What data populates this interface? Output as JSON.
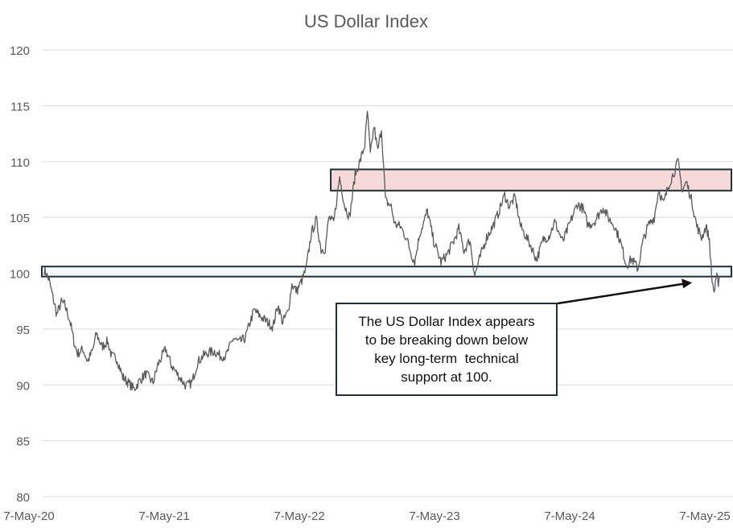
{
  "chart_data": {
    "type": "line",
    "title": "US Dollar Index",
    "xlabel": "",
    "ylabel": "",
    "ylim": [
      80,
      120
    ],
    "y_ticks": [
      80,
      85,
      90,
      95,
      100,
      105,
      110,
      115,
      120
    ],
    "x_tick_labels": [
      "7-May-20",
      "7-May-21",
      "7-May-22",
      "7-May-23",
      "7-May-24",
      "7-May-25"
    ],
    "xlim": [
      "2020-05-07",
      "2025-05-07"
    ],
    "grid": true,
    "series": [
      {
        "color": "#595959",
        "points": [
          [
            "2020-05-07",
            100.3
          ],
          [
            "2020-05-20",
            99.4
          ],
          [
            "2020-06-01",
            97.6
          ],
          [
            "2020-06-10",
            96.3
          ],
          [
            "2020-06-22",
            97.4
          ],
          [
            "2020-07-01",
            97.2
          ],
          [
            "2020-07-15",
            95.8
          ],
          [
            "2020-07-28",
            93.6
          ],
          [
            "2020-08-05",
            92.8
          ],
          [
            "2020-08-20",
            93.2
          ],
          [
            "2020-09-01",
            92.1
          ],
          [
            "2020-09-15",
            93.1
          ],
          [
            "2020-09-25",
            94.6
          ],
          [
            "2020-10-10",
            93.4
          ],
          [
            "2020-10-25",
            93.9
          ],
          [
            "2020-11-05",
            92.6
          ],
          [
            "2020-11-20",
            92.3
          ],
          [
            "2020-12-05",
            90.7
          ],
          [
            "2020-12-20",
            90.2
          ],
          [
            "2021-01-05",
            89.6
          ],
          [
            "2021-01-20",
            90.4
          ],
          [
            "2021-02-05",
            91.0
          ],
          [
            "2021-02-25",
            90.2
          ],
          [
            "2021-03-10",
            91.8
          ],
          [
            "2021-03-31",
            93.2
          ],
          [
            "2021-04-15",
            91.8
          ],
          [
            "2021-05-01",
            91.0
          ],
          [
            "2021-05-25",
            89.9
          ],
          [
            "2021-06-10",
            90.2
          ],
          [
            "2021-06-25",
            92.0
          ],
          [
            "2021-07-10",
            92.6
          ],
          [
            "2021-07-25",
            92.9
          ],
          [
            "2021-08-10",
            93.0
          ],
          [
            "2021-08-25",
            92.6
          ],
          [
            "2021-09-10",
            92.6
          ],
          [
            "2021-09-30",
            94.2
          ],
          [
            "2021-10-15",
            93.8
          ],
          [
            "2021-11-01",
            94.2
          ],
          [
            "2021-11-15",
            95.7
          ],
          [
            "2021-11-25",
            96.7
          ],
          [
            "2021-12-10",
            96.2
          ],
          [
            "2022-01-01",
            95.6
          ],
          [
            "2022-01-15",
            95.2
          ],
          [
            "2022-01-28",
            97.2
          ],
          [
            "2022-02-10",
            95.6
          ],
          [
            "2022-02-25",
            96.6
          ],
          [
            "2022-03-07",
            99.0
          ],
          [
            "2022-03-20",
            98.4
          ],
          [
            "2022-04-05",
            99.5
          ],
          [
            "2022-04-15",
            100.5
          ],
          [
            "2022-04-28",
            103.5
          ],
          [
            "2022-05-12",
            104.8
          ],
          [
            "2022-05-25",
            102.1
          ],
          [
            "2022-06-05",
            102.2
          ],
          [
            "2022-06-15",
            105.0
          ],
          [
            "2022-06-28",
            104.5
          ],
          [
            "2022-07-14",
            108.6
          ],
          [
            "2022-07-28",
            106.0
          ],
          [
            "2022-08-10",
            105.0
          ],
          [
            "2022-08-25",
            108.9
          ],
          [
            "2022-09-07",
            110.0
          ],
          [
            "2022-09-20",
            111.5
          ],
          [
            "2022-09-27",
            114.5
          ],
          [
            "2022-10-05",
            110.6
          ],
          [
            "2022-10-15",
            113.2
          ],
          [
            "2022-10-25",
            110.9
          ],
          [
            "2022-11-04",
            113.0
          ],
          [
            "2022-11-15",
            106.5
          ],
          [
            "2022-11-30",
            106.0
          ],
          [
            "2022-12-10",
            104.4
          ],
          [
            "2022-12-25",
            104.2
          ],
          [
            "2023-01-10",
            103.2
          ],
          [
            "2023-01-26",
            101.5
          ],
          [
            "2023-02-02",
            101.0
          ],
          [
            "2023-02-15",
            103.5
          ],
          [
            "2023-03-01",
            104.8
          ],
          [
            "2023-03-08",
            105.6
          ],
          [
            "2023-03-25",
            102.9
          ],
          [
            "2023-04-14",
            101.0
          ],
          [
            "2023-05-01",
            101.7
          ],
          [
            "2023-05-20",
            103.0
          ],
          [
            "2023-06-01",
            104.0
          ],
          [
            "2023-06-15",
            102.0
          ],
          [
            "2023-07-01",
            103.0
          ],
          [
            "2023-07-14",
            99.8
          ],
          [
            "2023-07-31",
            101.7
          ],
          [
            "2023-08-15",
            103.2
          ],
          [
            "2023-09-01",
            104.2
          ],
          [
            "2023-09-15",
            105.3
          ],
          [
            "2023-10-03",
            107.0
          ],
          [
            "2023-10-15",
            106.0
          ],
          [
            "2023-10-31",
            106.8
          ],
          [
            "2023-11-15",
            104.2
          ],
          [
            "2023-12-01",
            103.2
          ],
          [
            "2023-12-15",
            102.3
          ],
          [
            "2023-12-28",
            101.2
          ],
          [
            "2024-01-15",
            103.0
          ],
          [
            "2024-02-01",
            103.4
          ],
          [
            "2024-02-15",
            104.6
          ],
          [
            "2024-03-08",
            102.8
          ],
          [
            "2024-03-25",
            104.3
          ],
          [
            "2024-04-16",
            106.2
          ],
          [
            "2024-05-01",
            105.8
          ],
          [
            "2024-05-15",
            104.3
          ],
          [
            "2024-06-01",
            104.6
          ],
          [
            "2024-06-25",
            105.9
          ],
          [
            "2024-07-10",
            104.9
          ],
          [
            "2024-07-25",
            104.3
          ],
          [
            "2024-08-10",
            102.9
          ],
          [
            "2024-08-27",
            100.7
          ],
          [
            "2024-09-10",
            101.3
          ],
          [
            "2024-09-27",
            100.4
          ],
          [
            "2024-10-10",
            102.8
          ],
          [
            "2024-10-25",
            104.3
          ],
          [
            "2024-11-10",
            105.0
          ],
          [
            "2024-11-22",
            107.5
          ],
          [
            "2024-12-05",
            106.2
          ],
          [
            "2024-12-20",
            108.0
          ],
          [
            "2025-01-01",
            108.9
          ],
          [
            "2025-01-13",
            110.0
          ],
          [
            "2025-01-25",
            107.4
          ],
          [
            "2025-02-05",
            108.2
          ],
          [
            "2025-02-20",
            106.4
          ],
          [
            "2025-03-05",
            104.2
          ],
          [
            "2025-03-18",
            103.2
          ],
          [
            "2025-03-30",
            104.2
          ],
          [
            "2025-04-08",
            103.0
          ],
          [
            "2025-04-14",
            99.7
          ],
          [
            "2025-04-21",
            98.3
          ],
          [
            "2025-04-28",
            99.6
          ],
          [
            "2025-05-02",
            99.2
          ],
          [
            "2025-05-05",
            99.8
          ]
        ]
      }
    ],
    "bands": [
      {
        "name": "resistance-band",
        "y_range": [
          107.4,
          109.3
        ],
        "x_range": [
          "2022-06-20",
          "2025-05-07"
        ],
        "fill": "#f3cccc",
        "stroke": "#1f3038"
      },
      {
        "name": "support-band",
        "y_range": [
          99.7,
          100.6
        ],
        "x_range": [
          "2020-05-07",
          "2025-05-07"
        ],
        "fill": "#f2f9f7",
        "stroke": "#1f3038"
      }
    ],
    "annotation": {
      "lines": [
        "The US Dollar Index appears",
        "to be breaking down below",
        "key long-term  technical",
        "support at 100."
      ],
      "arrow_target": [
        "2025-04-22",
        99.3
      ],
      "arrow_color": "#111111"
    }
  }
}
